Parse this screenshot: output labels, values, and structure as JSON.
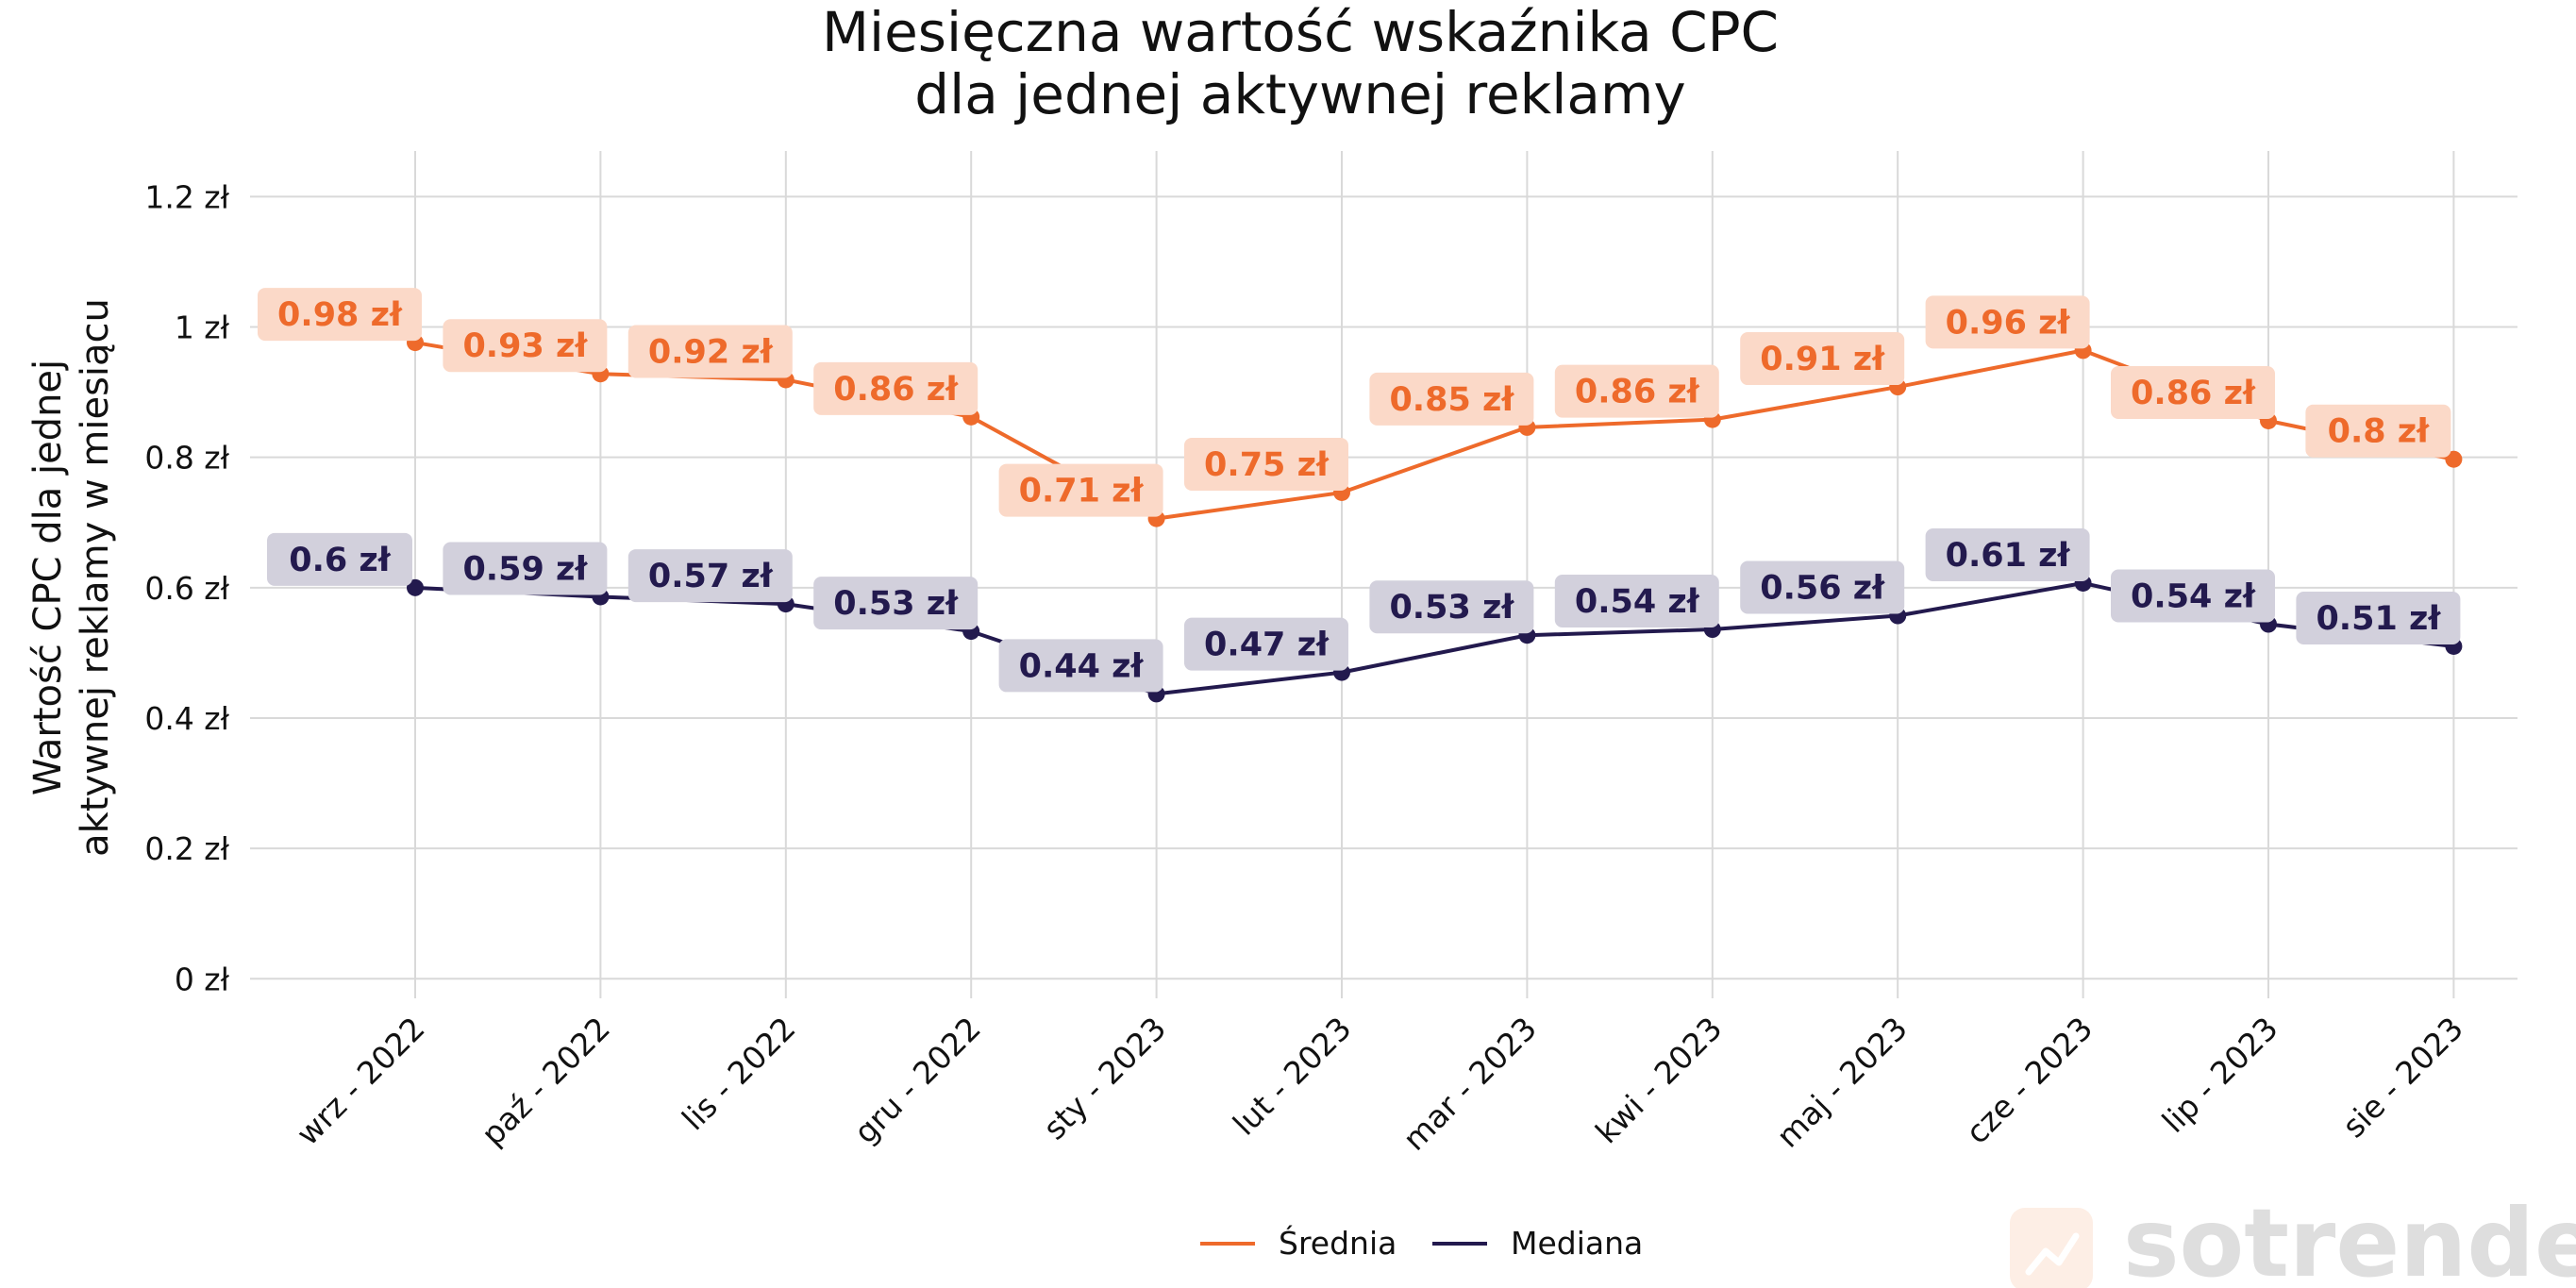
{
  "chart_data": {
    "type": "line",
    "title_line1": "Miesięczna wartość wskaźnika CPC",
    "title_line2": "dla jednej aktywnej reklamy",
    "ylabel_line1": "Wartość CPC dla jednej",
    "ylabel_line2": "aktywnej reklamy w miesiącu",
    "categories": [
      "wrz - 2022",
      "paź - 2022",
      "lis - 2022",
      "gru - 2022",
      "sty - 2023",
      "lut - 2023",
      "mar - 2023",
      "kwi - 2023",
      "maj - 2023",
      "cze - 2023",
      "lip - 2023",
      "sie - 2023"
    ],
    "y_ticks": [
      0,
      0.2,
      0.4,
      0.6,
      0.8,
      1,
      1.2
    ],
    "y_tick_labels": [
      "0 zł",
      "0.2 zł",
      "0.4 zł",
      "0.6 zł",
      "0.8 zł",
      "1 zł",
      "1.2 zł"
    ],
    "ylim": [
      -0.03,
      1.27
    ],
    "grid": true,
    "legend_position": "bottom-center",
    "series": [
      {
        "name": "Średnia",
        "color": "#ee6a2b",
        "label_bg": "#fbd9c8",
        "values": [
          0.976,
          0.928,
          0.919,
          0.862,
          0.706,
          0.746,
          0.846,
          0.858,
          0.908,
          0.964,
          0.856,
          0.797
        ],
        "labels": [
          "0.98 zł",
          "0.93 zł",
          "0.92 zł",
          "0.86 zł",
          "0.71 zł",
          "0.75 zł",
          "0.85 zł",
          "0.86 zł",
          "0.91 zł",
          "0.96 zł",
          "0.86 zł",
          "0.8 zł"
        ]
      },
      {
        "name": "Mediana",
        "color": "#231a4e",
        "label_bg": "#d2d0dc",
        "values": [
          0.6,
          0.586,
          0.575,
          0.533,
          0.437,
          0.47,
          0.527,
          0.536,
          0.557,
          0.607,
          0.544,
          0.51
        ],
        "labels": [
          "0.6 zł",
          "0.59 zł",
          "0.57 zł",
          "0.53 zł",
          "0.44 zł",
          "0.47 zł",
          "0.53 zł",
          "0.54 zł",
          "0.56 zł",
          "0.61 zł",
          "0.54 zł",
          "0.51 zł"
        ]
      }
    ]
  },
  "watermark": {
    "text": "sotrender",
    "text_color": "#dedede",
    "badge_color": "#fdeee5"
  }
}
